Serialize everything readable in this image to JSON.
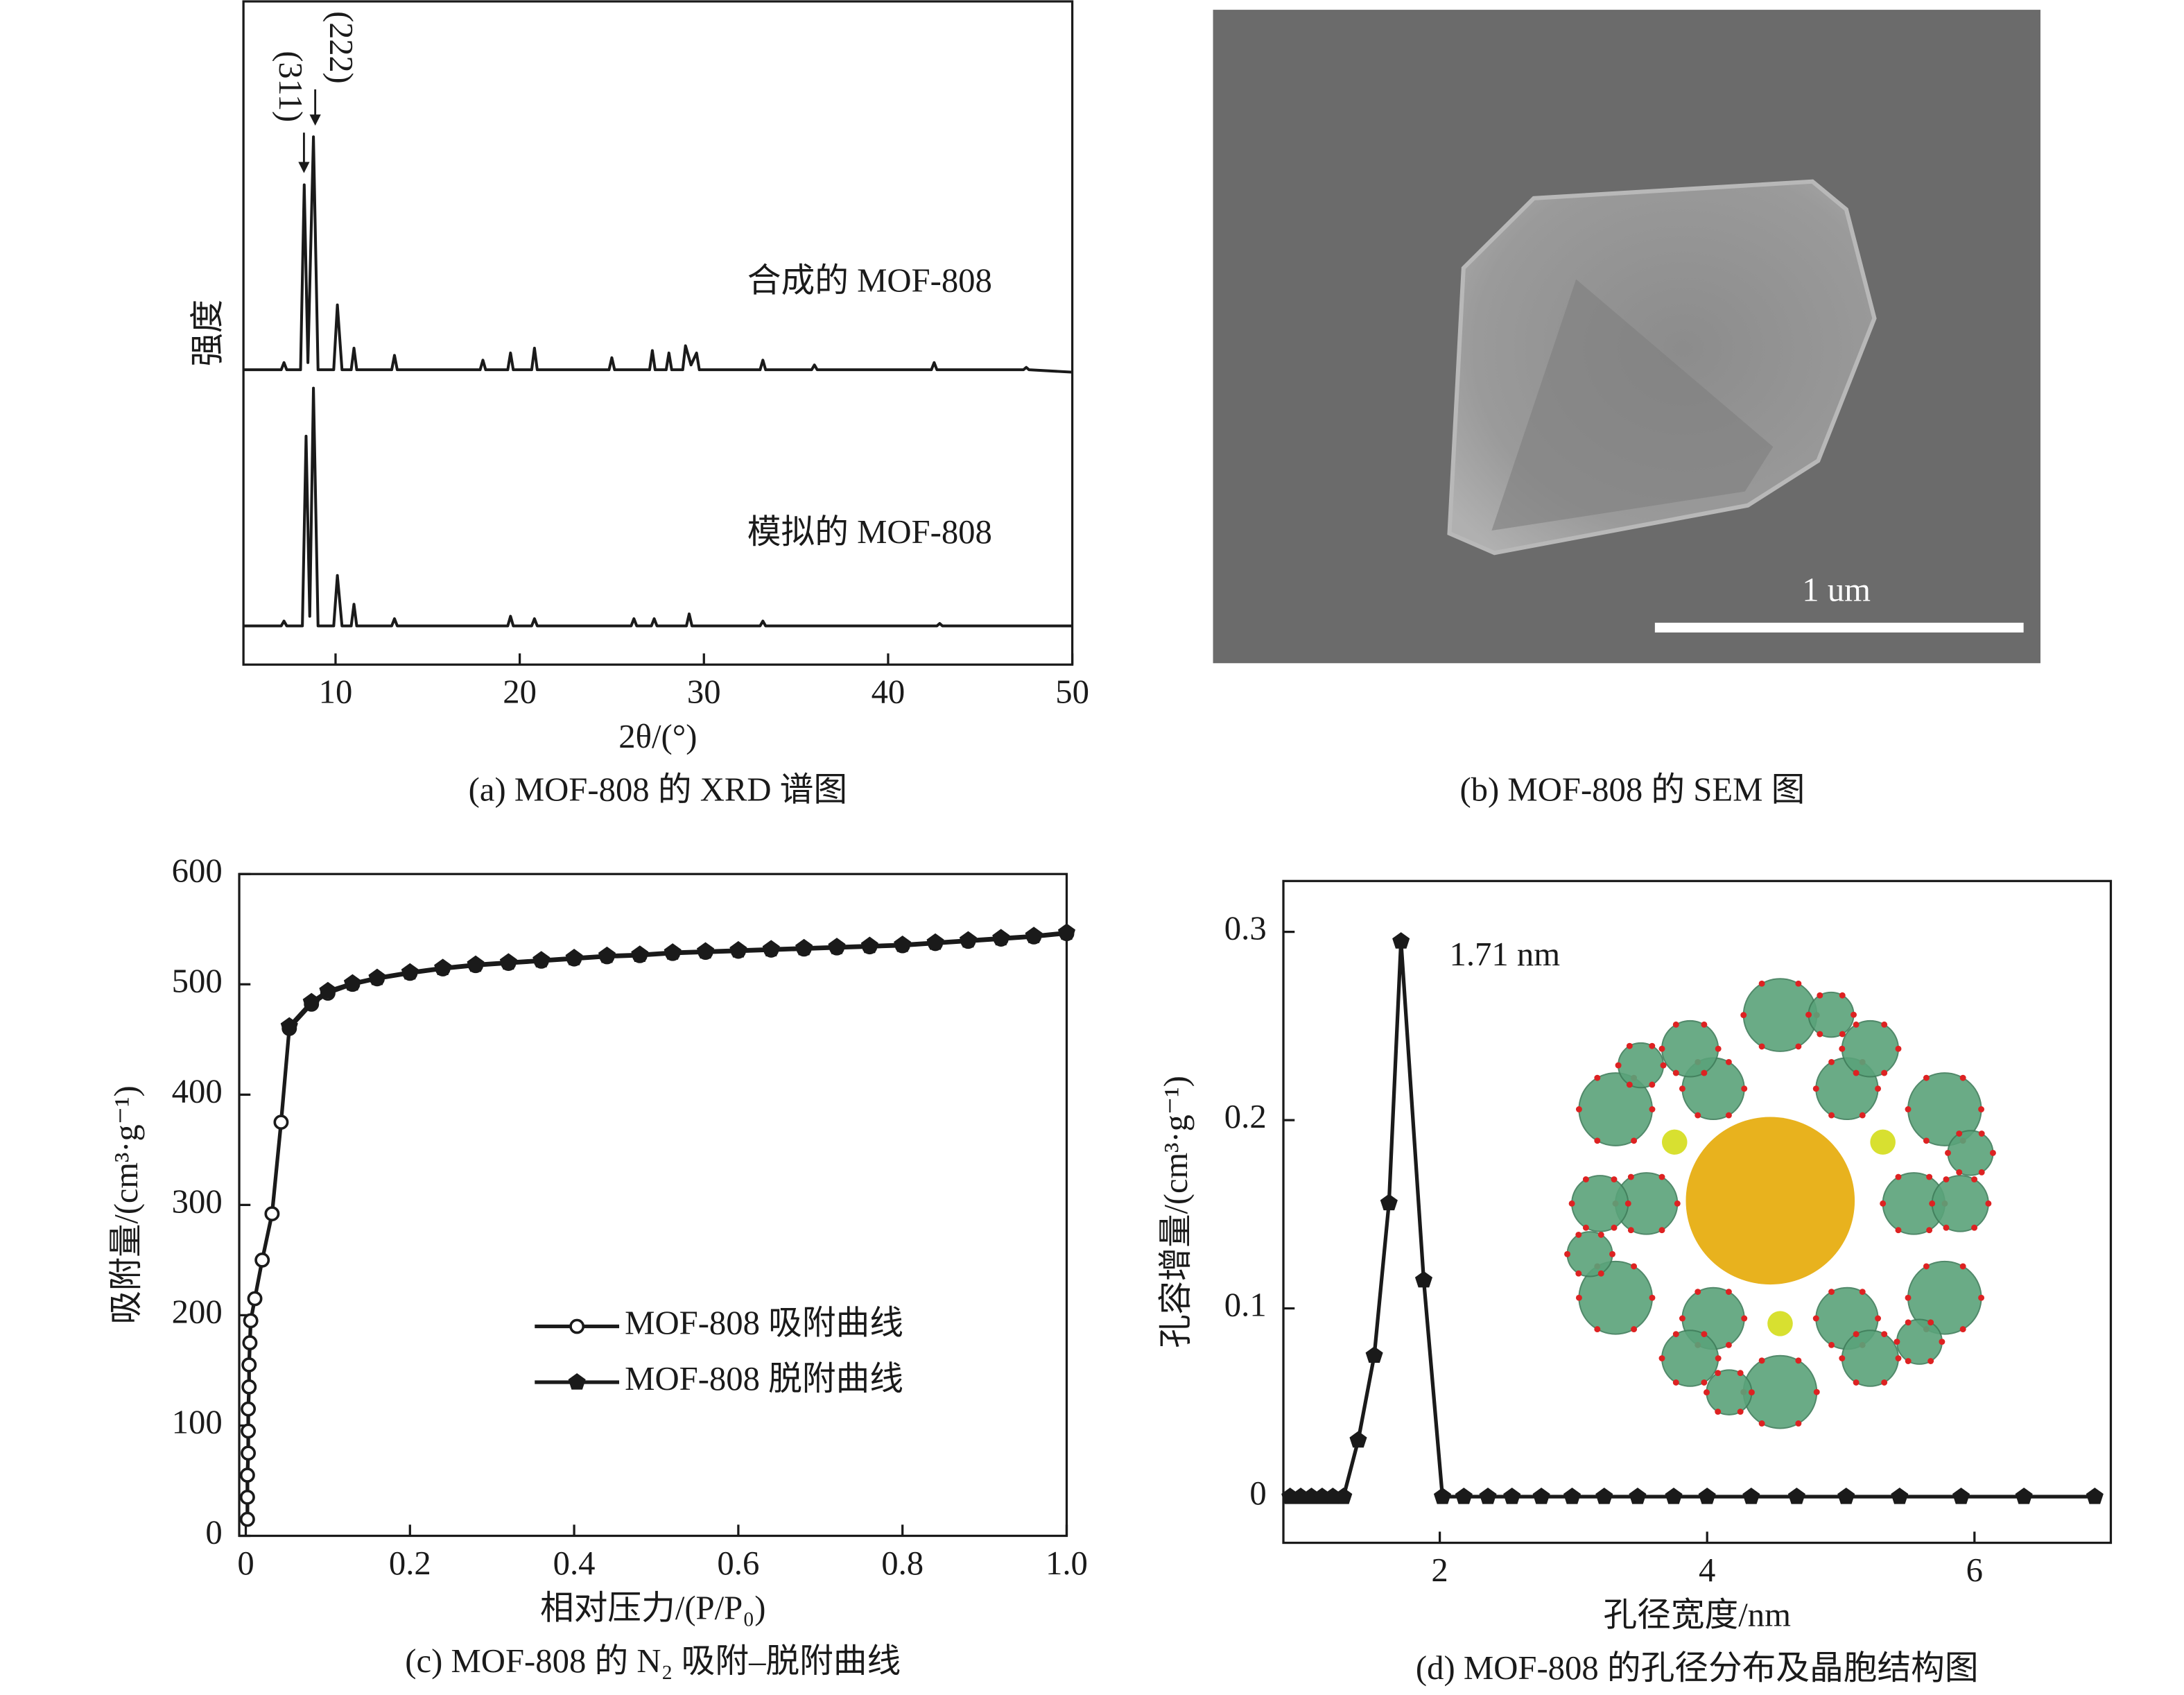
{
  "chart_data": [
    {
      "type": "line",
      "caption": "(a) MOF-808 的 XRD 谱图",
      "xlabel": "2θ/(°)",
      "ylabel": "强度",
      "xlim": [
        5,
        50
      ],
      "xticks": [
        10,
        20,
        30,
        40,
        50
      ],
      "ylim": [
        0,
        100
      ],
      "annotations": [
        "(311)",
        "(222)"
      ],
      "series": [
        {
          "name": "合成的 MOF-808",
          "color": "#1a1a1a",
          "x": [
            5,
            7.05,
            7.2,
            7.35,
            8.1,
            8.3,
            8.5,
            8.8,
            9.05,
            9.9,
            10.1,
            10.35,
            10.85,
            11.0,
            11.15,
            13.05,
            13.2,
            13.35,
            17.85,
            18.0,
            18.15,
            19.35,
            19.5,
            19.65,
            20.65,
            20.8,
            20.95,
            24.85,
            25.0,
            25.15,
            27.05,
            27.2,
            27.35,
            27.95,
            28.1,
            28.25,
            28.85,
            29.0,
            29.3,
            29.6,
            29.75,
            33.05,
            33.2,
            33.35,
            35.85,
            36.0,
            36.15,
            42.35,
            42.5,
            42.65,
            47.35,
            47.5,
            47.65,
            50
          ],
          "values": [
            3,
            3,
            6,
            3,
            3,
            80,
            6,
            100,
            3,
            3,
            30,
            3,
            3,
            12,
            3,
            3,
            9,
            3,
            3,
            7,
            3,
            3,
            10,
            3,
            3,
            12,
            3,
            3,
            8,
            3,
            3,
            11,
            3,
            3,
            10,
            3,
            3,
            13,
            5,
            10,
            3,
            3,
            7,
            3,
            3,
            5,
            3,
            3,
            6,
            3,
            3,
            4,
            3,
            2
          ]
        },
        {
          "name": "模拟的 MOF-808",
          "color": "#1a1a1a",
          "x": [
            5,
            7.05,
            7.2,
            7.35,
            8.2,
            8.4,
            8.6,
            8.8,
            9.05,
            9.9,
            10.1,
            10.35,
            10.85,
            11.0,
            11.15,
            13.05,
            13.2,
            13.35,
            19.35,
            19.5,
            19.65,
            20.65,
            20.8,
            20.95,
            26.05,
            26.2,
            26.35,
            27.15,
            27.3,
            27.45,
            29.05,
            29.2,
            29.35,
            33.05,
            33.2,
            33.35,
            42.65,
            42.8,
            42.95,
            50
          ],
          "values": [
            1,
            1,
            3,
            1,
            1,
            80,
            5,
            100,
            1,
            1,
            22,
            1,
            1,
            10,
            1,
            1,
            4,
            1,
            1,
            5,
            1,
            1,
            4,
            1,
            1,
            4,
            1,
            1,
            4,
            1,
            1,
            6,
            1,
            1,
            3,
            1,
            1,
            2,
            1,
            1
          ]
        }
      ]
    },
    {
      "type": "line",
      "caption": "(c) MOF-808 的 N₂ 吸附–脱附曲线",
      "xlabel": "相对压力/(P/P₀)",
      "ylabel": "吸附量/(cm³·g⁻¹)",
      "xlim": [
        -0.008,
        1.0
      ],
      "xticks": [
        0,
        0.2,
        0.4,
        0.6,
        0.8,
        {
          "value": 1,
          "label": "1.0"
        }
      ],
      "ylim": [
        0,
        600
      ],
      "yticks": [
        0,
        100,
        200,
        300,
        400,
        500,
        600
      ],
      "legend": "center",
      "series": [
        {
          "name": "MOF-808 吸附曲线",
          "color": "#1a1a1a",
          "marker": "open-circle",
          "x": [
            0.002,
            0.002,
            0.002,
            0.003,
            0.003,
            0.003,
            0.004,
            0.004,
            0.005,
            0.006,
            0.011,
            0.02,
            0.032,
            0.043,
            0.053,
            0.08,
            0.1,
            0.13,
            0.16,
            0.2,
            0.24,
            0.28,
            0.32,
            0.36,
            0.4,
            0.44,
            0.48,
            0.52,
            0.56,
            0.6,
            0.64,
            0.68,
            0.72,
            0.76,
            0.8,
            0.84,
            0.88,
            0.92,
            0.96,
            1.0
          ],
          "values": [
            15,
            35,
            55,
            75,
            95,
            115,
            135,
            155,
            175,
            195,
            215,
            250,
            292,
            375,
            460,
            482,
            492,
            500,
            505,
            510,
            514,
            517,
            519,
            521,
            523,
            525,
            526,
            528,
            529,
            530,
            531,
            532,
            533,
            534,
            535,
            537,
            539,
            541,
            543,
            546
          ]
        },
        {
          "name": "MOF-808 脱附曲线",
          "color": "#1a1a1a",
          "marker": "pentagon",
          "x": [
            0.053,
            0.08,
            0.1,
            0.13,
            0.16,
            0.2,
            0.24,
            0.28,
            0.32,
            0.36,
            0.4,
            0.44,
            0.48,
            0.52,
            0.56,
            0.6,
            0.64,
            0.68,
            0.72,
            0.76,
            0.8,
            0.84,
            0.88,
            0.92,
            0.96,
            1.0
          ],
          "values": [
            462,
            484,
            494,
            501,
            506,
            511,
            515,
            518,
            520,
            522,
            524,
            526,
            527,
            529,
            530,
            531,
            532,
            533,
            534,
            535,
            536,
            538,
            540,
            542,
            544,
            547
          ]
        }
      ]
    },
    {
      "type": "line",
      "caption": "(d) MOF-808 的孔径分布及晶胞结构图",
      "xlabel": "孔径宽度/nm",
      "ylabel": "孔容增量/(cm³·g⁻¹)",
      "xlim": [
        0.83,
        7.02
      ],
      "xticks": [
        2,
        4,
        6
      ],
      "ylim": [
        -0.0245,
        0.327
      ],
      "yticks": [
        0,
        0.1,
        0.2,
        0.3
      ],
      "annotations": [
        "1.71 nm"
      ],
      "series": [
        {
          "color": "#1a1a1a",
          "marker": "pentagon",
          "x": [
            0.88,
            0.96,
            1.04,
            1.12,
            1.2,
            1.28,
            1.39,
            1.51,
            1.62,
            1.71,
            1.88,
            2.02,
            2.18,
            2.36,
            2.54,
            2.76,
            2.99,
            3.23,
            3.48,
            3.75,
            4.0,
            4.33,
            4.67,
            5.04,
            5.44,
            5.9,
            6.37,
            6.9
          ],
          "values": [
            0,
            0,
            0,
            0,
            0,
            0,
            0.03,
            0.075,
            0.156,
            0.295,
            0.115,
            0,
            0,
            0,
            0,
            0,
            0,
            0,
            0,
            0,
            0,
            0,
            0,
            0,
            0,
            0,
            0,
            0
          ]
        }
      ]
    }
  ],
  "figure_b": {
    "scale_bar_label": "1 um",
    "caption": "(b) MOF-808 的 SEM 图"
  }
}
